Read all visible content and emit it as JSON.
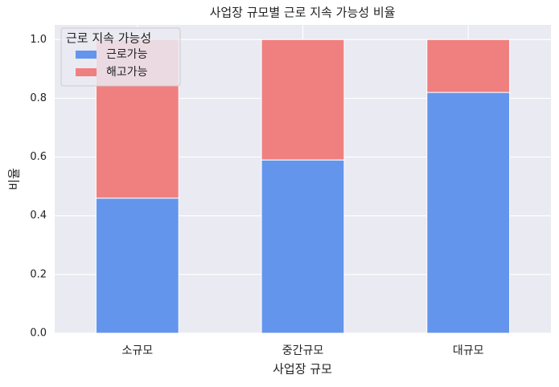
{
  "chart_data": {
    "type": "stacked_bar",
    "title": "사업장 규모별 근로 지속 가능성 비율",
    "x_label": "사업장 규모",
    "y_label": "비율",
    "categories": [
      "소규모",
      "중간규모",
      "대규모"
    ],
    "series": [
      {
        "name": "근로가능",
        "color": "#6495ed",
        "values": [
          0.46,
          0.59,
          0.82
        ]
      },
      {
        "name": "해고가능",
        "color": "#f08080",
        "values": [
          0.54,
          0.41,
          0.18
        ]
      }
    ],
    "legend_title": "근로 지속 가능성",
    "legend_position": "upper-left",
    "ylim": [
      0,
      1.05
    ],
    "yticks": [
      {
        "value": 0,
        "label": "0.0"
      },
      0.2,
      0.4,
      0.6,
      0.8,
      {
        "value": 1,
        "label": "1.0"
      }
    ],
    "grid": true
  }
}
